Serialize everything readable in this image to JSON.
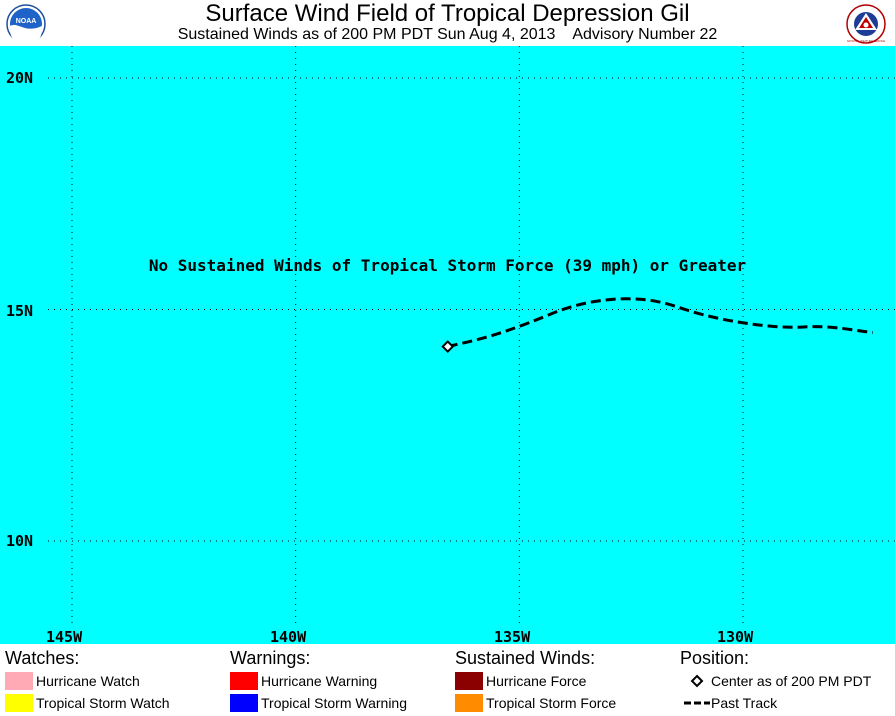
{
  "header": {
    "title": "Surface Wind Field of Tropical Depression Gil",
    "subtitle": "Sustained Winds as of 200 PM PDT Sun Aug 4, 2013    Advisory Number 22"
  },
  "logos": {
    "left": "noaa-logo",
    "right": "national-weather-service-logo",
    "left_text": "NOAA",
    "right_text": "NATIONAL WEATHER SERVICE"
  },
  "map": {
    "ocean_color": "#00ffff",
    "latitude_labels": [
      "20N",
      "15N",
      "10N"
    ],
    "longitude_labels": [
      "145W",
      "140W",
      "135W",
      "130W"
    ],
    "annotation": "No Sustained Winds of Tropical Storm Force (39 mph) or Greater",
    "storm_center": {
      "lat": 14.2,
      "lon": -136.6
    },
    "past_track": [
      {
        "lat": 14.2,
        "lon": -136.6
      },
      {
        "lat": 14.4,
        "lon": -135.7
      },
      {
        "lat": 14.7,
        "lon": -134.8
      },
      {
        "lat": 15.1,
        "lon": -133.8
      },
      {
        "lat": 15.25,
        "lon": -132.8
      },
      {
        "lat": 15.2,
        "lon": -131.9
      },
      {
        "lat": 14.9,
        "lon": -131.0
      },
      {
        "lat": 14.7,
        "lon": -130.0
      },
      {
        "lat": 14.6,
        "lon": -129.0
      },
      {
        "lat": 14.65,
        "lon": -128.2
      },
      {
        "lat": 14.5,
        "lon": -127.1
      }
    ]
  },
  "legend": {
    "watches": {
      "heading": "Watches:",
      "items": [
        {
          "label": "Hurricane Watch",
          "color": "#ffaab4"
        },
        {
          "label": "Tropical Storm Watch",
          "color": "#ffff00"
        }
      ]
    },
    "warnings": {
      "heading": "Warnings:",
      "items": [
        {
          "label": "Hurricane Warning",
          "color": "#ff0000"
        },
        {
          "label": "Tropical Storm Warning",
          "color": "#0000ff"
        }
      ]
    },
    "sustained_winds": {
      "heading": "Sustained Winds:",
      "items": [
        {
          "label": "Hurricane Force",
          "color": "#8b0000"
        },
        {
          "label": "Tropical Storm Force",
          "color": "#ff8c00"
        }
      ]
    },
    "position": {
      "heading": "Position:",
      "items": [
        {
          "label": "Center as of 200 PM PDT",
          "symbol": "diamond-icon"
        },
        {
          "label": "Past Track",
          "symbol": "dashed-line-icon"
        }
      ]
    }
  }
}
